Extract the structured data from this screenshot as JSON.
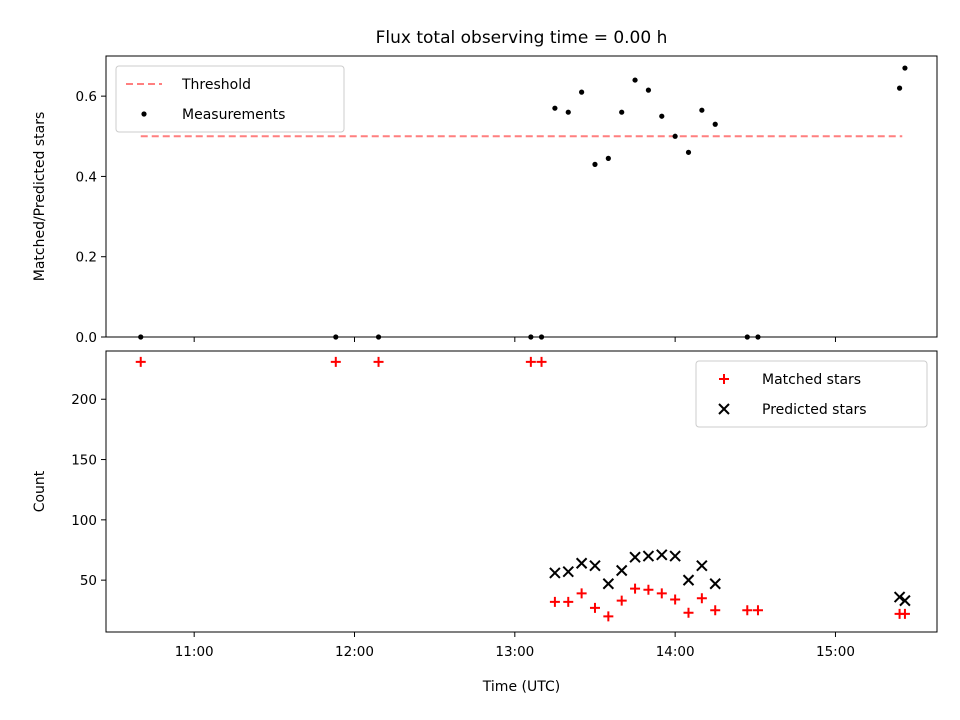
{
  "chart_data": [
    {
      "type": "scatter",
      "title": "Flux total observing time = 0.00 h",
      "xlabel": "",
      "ylabel": "Matched/Predicted stars",
      "xlim": [
        "10:27",
        "15:38"
      ],
      "ylim": [
        0,
        0.7
      ],
      "xticks": [
        "11:00",
        "12:00",
        "13:00",
        "14:00",
        "15:00"
      ],
      "yticks": [
        0.0,
        0.2,
        0.4,
        0.6
      ],
      "ytick_labels": [
        "0.0",
        "0.2",
        "0.4",
        "0.6"
      ],
      "legend_position": "upper-left",
      "series": [
        {
          "name": "Threshold",
          "kind": "line",
          "style": "dashed",
          "color": "#ff7f7f",
          "x": [
            "10:40",
            "15:25"
          ],
          "y": [
            0.5,
            0.5
          ]
        },
        {
          "name": "Measurements",
          "kind": "scatter",
          "marker": "dot",
          "color": "#000000",
          "x": [
            "10:40",
            "11:53",
            "12:09",
            "13:06",
            "13:10",
            "13:15",
            "13:20",
            "13:25",
            "13:30",
            "13:35",
            "13:40",
            "13:45",
            "13:50",
            "13:55",
            "14:00",
            "14:05",
            "14:10",
            "14:15",
            "14:27",
            "14:31",
            "15:24",
            "15:26"
          ],
          "y": [
            0.0,
            0.0,
            0.0,
            0.0,
            0.0,
            0.57,
            0.56,
            0.61,
            0.43,
            0.445,
            0.56,
            0.64,
            0.615,
            0.55,
            0.5,
            0.46,
            0.565,
            0.53,
            0.0,
            0.0,
            0.62,
            0.67
          ]
        }
      ]
    },
    {
      "type": "scatter",
      "title": "",
      "xlabel": "Time (UTC)",
      "ylabel": "Count",
      "xlim": [
        "10:27",
        "15:38"
      ],
      "ylim": [
        7,
        240
      ],
      "xticks": [
        "11:00",
        "12:00",
        "13:00",
        "14:00",
        "15:00"
      ],
      "yticks": [
        50,
        100,
        150,
        200
      ],
      "ytick_labels": [
        "50",
        "100",
        "150",
        "200"
      ],
      "legend_position": "upper-right",
      "series": [
        {
          "name": "Matched stars",
          "kind": "scatter",
          "marker": "plus",
          "color": "#ff0000",
          "x": [
            "10:40",
            "11:53",
            "12:09",
            "13:06",
            "13:10",
            "13:15",
            "13:20",
            "13:25",
            "13:30",
            "13:35",
            "13:40",
            "13:45",
            "13:50",
            "13:55",
            "14:00",
            "14:05",
            "14:10",
            "14:15",
            "14:27",
            "14:31",
            "15:24",
            "15:26"
          ],
          "y": [
            231,
            231,
            231,
            231,
            231,
            32,
            32,
            39,
            27,
            20,
            33,
            43,
            42,
            39,
            34,
            23,
            35,
            25,
            25,
            25,
            22,
            22
          ]
        },
        {
          "name": "Predicted stars",
          "kind": "scatter",
          "marker": "x",
          "color": "#000000",
          "x": [
            "13:15",
            "13:20",
            "13:25",
            "13:30",
            "13:35",
            "13:40",
            "13:45",
            "13:50",
            "13:55",
            "14:00",
            "14:05",
            "14:10",
            "14:15",
            "15:24",
            "15:26"
          ],
          "y": [
            56,
            57,
            64,
            62,
            47,
            58,
            69,
            70,
            71,
            70,
            50,
            62,
            47,
            36,
            33
          ]
        }
      ]
    }
  ]
}
